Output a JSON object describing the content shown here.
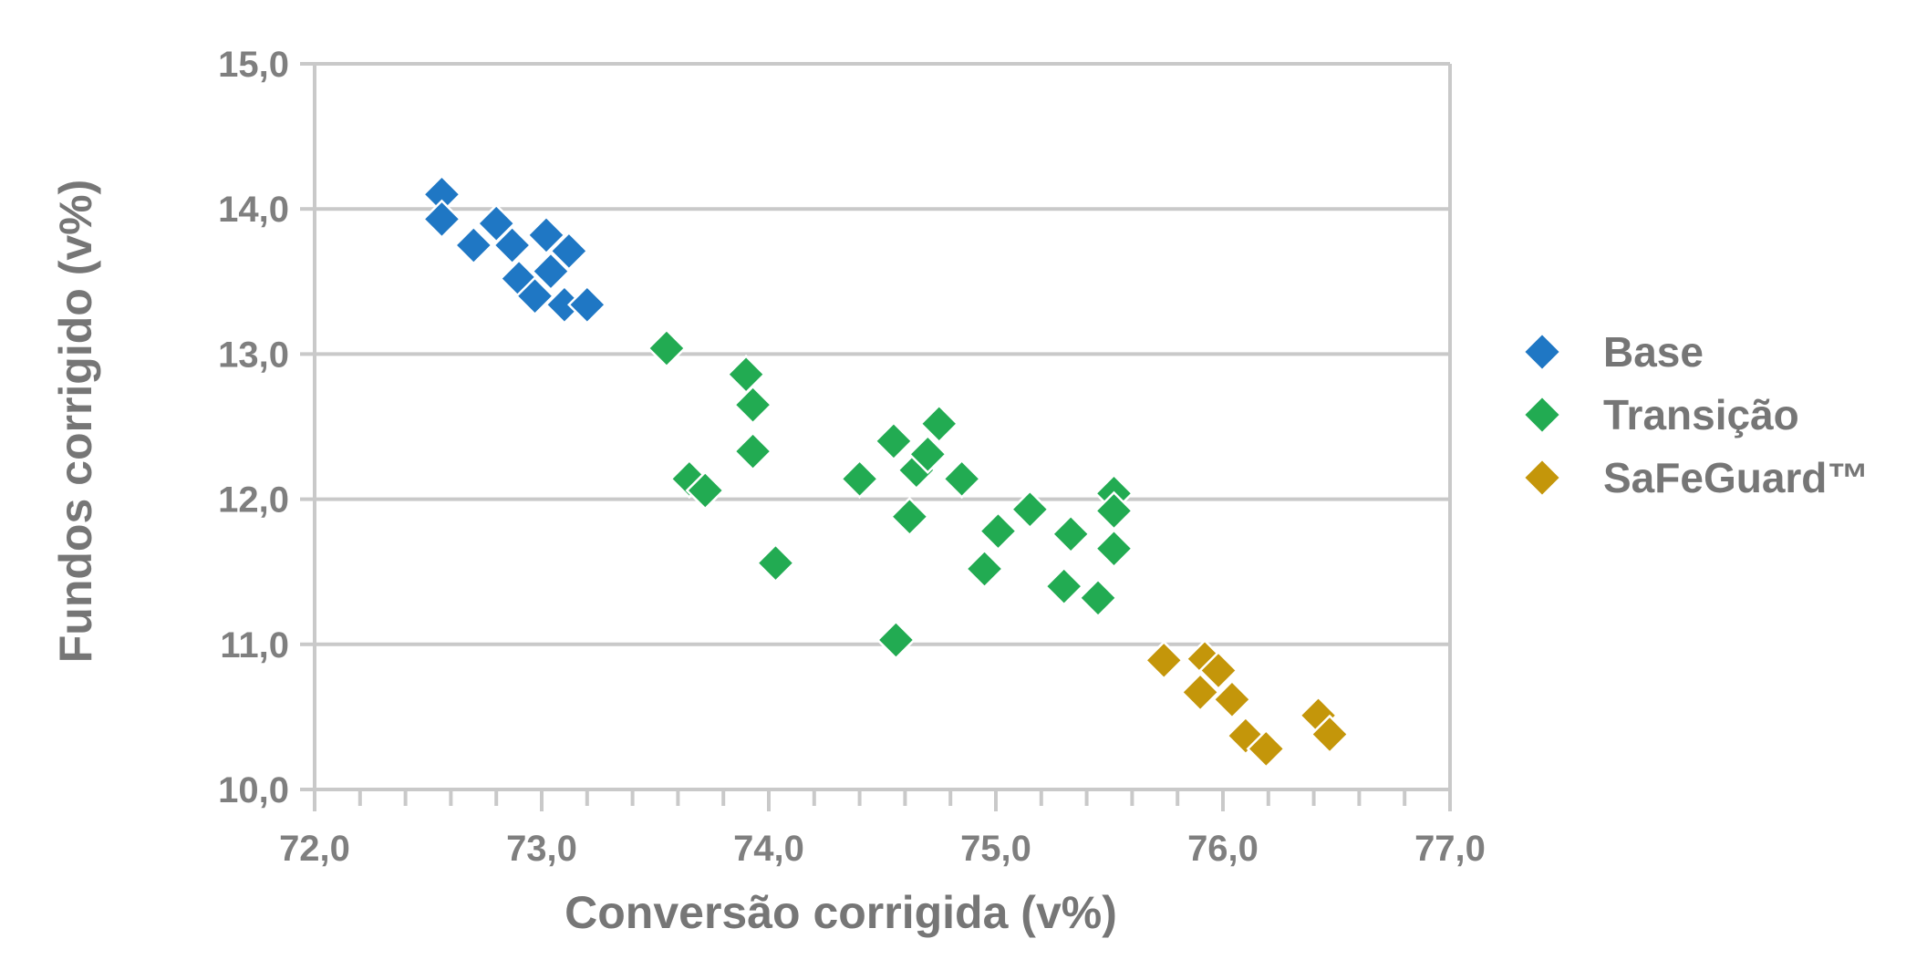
{
  "chart_data": {
    "type": "scatter",
    "xlabel": "Conversão corrigida (v%)",
    "ylabel": "Fundos corrigido (v%)",
    "xlim": [
      72.0,
      77.0
    ],
    "ylim": [
      10.0,
      15.0
    ],
    "x_ticks": [
      "72,0",
      "73,0",
      "74,0",
      "75,0",
      "76,0",
      "77,0"
    ],
    "y_ticks": [
      "10,0",
      "11,0",
      "12,0",
      "13,0",
      "14,0",
      "15,0"
    ],
    "grid": "horizontal",
    "legend": "right",
    "marker": "diamond",
    "series": [
      {
        "name": "Base",
        "color": "#1f77c4",
        "points": [
          [
            72.56,
            14.1
          ],
          [
            72.56,
            13.93
          ],
          [
            72.7,
            13.75
          ],
          [
            72.8,
            13.9
          ],
          [
            72.87,
            13.75
          ],
          [
            72.9,
            13.52
          ],
          [
            72.97,
            13.4
          ],
          [
            73.02,
            13.82
          ],
          [
            73.04,
            13.57
          ],
          [
            73.1,
            13.34
          ],
          [
            73.12,
            13.71
          ],
          [
            73.2,
            13.34
          ]
        ]
      },
      {
        "name": "Transição",
        "color": "#22ab52",
        "points": [
          [
            73.55,
            13.04
          ],
          [
            73.65,
            12.14
          ],
          [
            73.72,
            12.06
          ],
          [
            73.9,
            12.86
          ],
          [
            73.93,
            12.65
          ],
          [
            73.93,
            12.33
          ],
          [
            74.03,
            11.56
          ],
          [
            74.4,
            12.14
          ],
          [
            74.55,
            12.4
          ],
          [
            74.56,
            11.03
          ],
          [
            74.62,
            11.88
          ],
          [
            74.65,
            12.2
          ],
          [
            74.7,
            12.31
          ],
          [
            74.75,
            12.52
          ],
          [
            74.85,
            12.14
          ],
          [
            74.95,
            11.52
          ],
          [
            75.01,
            11.78
          ],
          [
            75.15,
            11.93
          ],
          [
            75.3,
            11.4
          ],
          [
            75.33,
            11.76
          ],
          [
            75.45,
            11.32
          ],
          [
            75.52,
            12.04
          ],
          [
            75.52,
            11.92
          ],
          [
            75.52,
            11.66
          ]
        ]
      },
      {
        "name": "SaFeGuard™",
        "color": "#c4960a",
        "points": [
          [
            75.74,
            10.89
          ],
          [
            75.9,
            10.67
          ],
          [
            75.92,
            10.9
          ],
          [
            75.98,
            10.82
          ],
          [
            76.04,
            10.62
          ],
          [
            76.1,
            10.37
          ],
          [
            76.19,
            10.28
          ],
          [
            76.42,
            10.51
          ],
          [
            76.47,
            10.38
          ]
        ]
      }
    ]
  }
}
